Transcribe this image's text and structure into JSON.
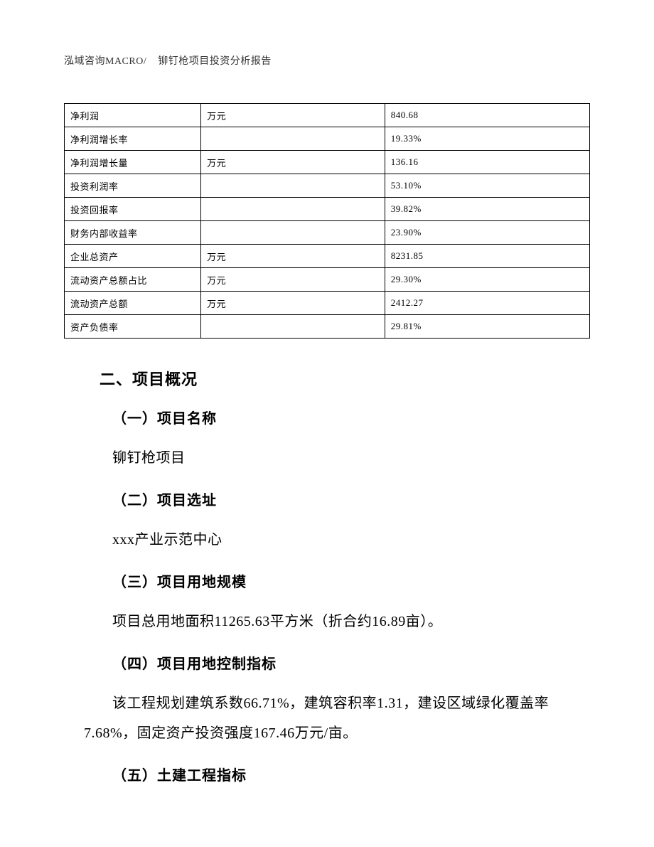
{
  "header": {
    "company": "泓域咨询MACRO/",
    "report_title": "铆钉枪项目投资分析报告"
  },
  "table": {
    "columns": {
      "col1_width": "26%",
      "col2_width": "35%",
      "col3_width": "39%"
    },
    "rows": [
      {
        "label": "净利润",
        "unit": "万元",
        "value": "840.68"
      },
      {
        "label": "净利润增长率",
        "unit": "",
        "value": "19.33%"
      },
      {
        "label": "净利润增长量",
        "unit": "万元",
        "value": "136.16"
      },
      {
        "label": "投资利润率",
        "unit": "",
        "value": "53.10%"
      },
      {
        "label": "投资回报率",
        "unit": "",
        "value": "39.82%"
      },
      {
        "label": "财务内部收益率",
        "unit": "",
        "value": "23.90%"
      },
      {
        "label": "企业总资产",
        "unit": "万元",
        "value": "8231.85"
      },
      {
        "label": "流动资产总额占比",
        "unit": "万元",
        "value": "29.30%"
      },
      {
        "label": "流动资产总额",
        "unit": "万元",
        "value": "2412.27"
      },
      {
        "label": "资产负债率",
        "unit": "",
        "value": "29.81%"
      }
    ],
    "border_color": "#000000",
    "font_size": 13
  },
  "sections": {
    "main_title": "二、项目概况",
    "sub1": {
      "title": "（一）项目名称",
      "body": "铆钉枪项目"
    },
    "sub2": {
      "title": "（二）项目选址",
      "body": "xxx产业示范中心"
    },
    "sub3": {
      "title": "（三）项目用地规模",
      "body": "项目总用地面积11265.63平方米（折合约16.89亩）。"
    },
    "sub4": {
      "title": "（四）项目用地控制指标",
      "body": "该工程规划建筑系数66.71%，建筑容积率1.31，建设区域绿化覆盖率7.68%，固定资产投资强度167.46万元/亩。"
    },
    "sub5": {
      "title": "（五）土建工程指标"
    }
  },
  "style": {
    "page_bg": "#ffffff",
    "text_color": "#000000",
    "heading_font": "SimHei",
    "body_font": "SimSun",
    "heading_fontsize": 22,
    "subheading_fontsize": 20,
    "body_fontsize": 20
  }
}
